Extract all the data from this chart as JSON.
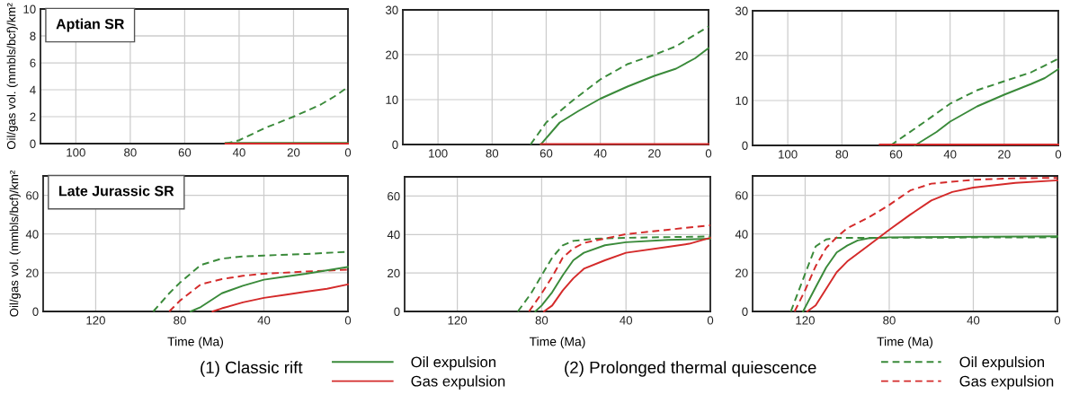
{
  "chart_data": [
    {
      "type": "line",
      "ylabel": "Oil/gas vol. (mmbls/bcf)/km²",
      "annotations": [
        "Aptian SR"
      ],
      "xlim": [
        113,
        0
      ],
      "xticks": [
        100,
        80,
        60,
        40,
        20,
        0
      ],
      "ylim": [
        0,
        10
      ],
      "yticks": [
        0,
        2,
        4,
        6,
        8,
        10
      ],
      "grid": true,
      "series": [
        {
          "color": "#3a8a3a",
          "line_style": "dashed",
          "x": [
            45,
            40,
            30,
            20,
            10,
            5,
            0
          ],
          "values": [
            0,
            0.25,
            1.2,
            2.0,
            2.9,
            3.5,
            4.2
          ]
        },
        {
          "color": "#3a8a3a",
          "line_style": "solid",
          "x": [
            45,
            0
          ],
          "values": [
            0.05,
            0.05
          ]
        },
        {
          "color": "#d42a2a",
          "line_style": "solid",
          "x": [
            45,
            0
          ],
          "values": [
            0,
            0
          ]
        }
      ]
    },
    {
      "type": "line",
      "xlim": [
        113,
        0
      ],
      "xticks": [
        100,
        80,
        60,
        40,
        20,
        0
      ],
      "ylim": [
        0,
        30
      ],
      "yticks": [
        0,
        10,
        20,
        30
      ],
      "grid": true,
      "series": [
        {
          "color": "#3a8a3a",
          "line_style": "dashed",
          "x": [
            65.8,
            60,
            50,
            40,
            30,
            20,
            12,
            0
          ],
          "values": [
            0,
            4.9,
            9.9,
            14.5,
            17.9,
            20,
            21.9,
            26.3
          ]
        },
        {
          "color": "#3a8a3a",
          "line_style": "solid",
          "x": [
            62,
            55,
            48,
            40,
            30,
            20,
            12,
            5,
            0
          ],
          "values": [
            0,
            4.9,
            7.5,
            10.2,
            12.9,
            15.3,
            16.9,
            19.2,
            21.5
          ]
        },
        {
          "color": "#d42a2a",
          "line_style": "solid",
          "x": [
            62,
            0
          ],
          "values": [
            0.1,
            0.1
          ]
        }
      ]
    },
    {
      "type": "line",
      "xlim": [
        113,
        0
      ],
      "xticks": [
        100,
        80,
        60,
        40,
        20,
        0
      ],
      "ylim": [
        0,
        30
      ],
      "yticks": [
        0,
        10,
        20,
        30
      ],
      "grid": true,
      "series": [
        {
          "color": "#3a8a3a",
          "line_style": "dashed",
          "x": [
            62,
            50,
            40,
            30,
            20,
            10,
            0
          ],
          "values": [
            0,
            5,
            9.3,
            12.3,
            14.3,
            16.3,
            19.3
          ]
        },
        {
          "color": "#3a8a3a",
          "line_style": "solid",
          "x": [
            53,
            45,
            40,
            30,
            20,
            10,
            5,
            0
          ],
          "values": [
            0,
            3,
            5.3,
            8.7,
            11.3,
            13.7,
            15,
            17
          ]
        },
        {
          "color": "#d42a2a",
          "line_style": "solid",
          "x": [
            66,
            0
          ],
          "values": [
            0.2,
            0.2
          ]
        }
      ]
    },
    {
      "type": "line",
      "ylabel": "Oil/gas vol. (mmbls/bcf)/km²",
      "xlabel": "Time (Ma)",
      "annotations": [
        "Late Jurassic SR"
      ],
      "xlim": [
        145,
        0
      ],
      "xticks": [
        120,
        80,
        40,
        0
      ],
      "ylim": [
        0,
        70
      ],
      "yticks": [
        0,
        20,
        40,
        60
      ],
      "grid": true,
      "series": [
        {
          "color": "#3a8a3a",
          "line_style": "dashed",
          "x": [
            92.6,
            85,
            80,
            70,
            60,
            50,
            40,
            20,
            0
          ],
          "values": [
            0,
            9.4,
            14.8,
            24,
            27.3,
            28.4,
            28.9,
            29.7,
            30.8
          ]
        },
        {
          "color": "#d42a2a",
          "line_style": "dashed",
          "x": [
            85,
            80,
            70,
            60,
            50,
            40,
            20,
            0
          ],
          "values": [
            0,
            5.5,
            14,
            16.7,
            18.4,
            19.5,
            20.6,
            21.6
          ]
        },
        {
          "color": "#3a8a3a",
          "line_style": "solid",
          "x": [
            74.8,
            70,
            60,
            50,
            40,
            30,
            20,
            0
          ],
          "values": [
            0,
            2.3,
            9.4,
            13.3,
            16.4,
            18,
            19.5,
            23
          ]
        },
        {
          "color": "#d42a2a",
          "line_style": "solid",
          "x": [
            64.4,
            60,
            50,
            40,
            30,
            20,
            10,
            0
          ],
          "values": [
            0,
            1.6,
            4.7,
            7,
            8.6,
            10.2,
            11.7,
            14
          ]
        }
      ]
    },
    {
      "type": "line",
      "xlabel": "Time (Ma)",
      "annotations": [
        "(1) Classic rift",
        "(2) Prolonged thermal quiescence"
      ],
      "legend": "bottom",
      "xlim": [
        145,
        0
      ],
      "xticks": [
        120,
        80,
        40,
        0
      ],
      "ylim": [
        0,
        70
      ],
      "yticks": [
        0,
        20,
        40,
        60
      ],
      "grid": true,
      "series": [
        {
          "name": "Oil expulsion",
          "color": "#3a8a3a",
          "line_style": "solid",
          "x": [
            83,
            80,
            75,
            70,
            65,
            60,
            50,
            40,
            20,
            0
          ],
          "values": [
            0,
            3.1,
            10,
            18.8,
            26.6,
            30.5,
            34.4,
            36,
            37.2,
            37.8
          ]
        },
        {
          "name": "Gas expulsion",
          "color": "#d42a2a",
          "line_style": "solid",
          "x": [
            78.9,
            75,
            70,
            65,
            60,
            50,
            40,
            20,
            10,
            0
          ],
          "values": [
            0,
            3.1,
            10.9,
            17.2,
            22.2,
            26.6,
            30.5,
            33.6,
            35.2,
            38.3
          ]
        },
        {
          "name": "Oil expulsion",
          "color": "#3a8a3a",
          "line_style": "dashed",
          "x": [
            91.3,
            85,
            80,
            75,
            70,
            65,
            55,
            40,
            0
          ],
          "values": [
            0,
            9.4,
            18.8,
            28,
            34.4,
            36.7,
            37.8,
            38.3,
            39
          ]
        },
        {
          "name": "Gas expulsion",
          "color": "#d42a2a",
          "line_style": "dashed",
          "x": [
            86,
            80,
            75,
            70,
            65,
            60,
            40,
            20,
            0
          ],
          "values": [
            0,
            9.4,
            18,
            28,
            32.8,
            35.6,
            40.2,
            42.5,
            44.8
          ]
        }
      ]
    },
    {
      "type": "line",
      "xlabel": "Time (Ma)",
      "xlim": [
        145,
        0
      ],
      "xticks": [
        120,
        80,
        40,
        0
      ],
      "ylim": [
        0,
        70
      ],
      "yticks": [
        0,
        20,
        40,
        60
      ],
      "grid": true,
      "series": [
        {
          "color": "#3a8a3a",
          "line_style": "dashed",
          "x": [
            126.8,
            120,
            115,
            110,
            105,
            0
          ],
          "values": [
            0,
            19.5,
            33.6,
            37.2,
            38,
            38.3
          ]
        },
        {
          "color": "#d42a2a",
          "line_style": "dashed",
          "x": [
            125,
            120,
            115,
            110,
            105,
            100,
            90,
            80,
            70,
            60,
            40,
            20,
            0
          ],
          "values": [
            0,
            11,
            23.4,
            32.8,
            38.3,
            43,
            48.4,
            55,
            62.5,
            66,
            68,
            68.8,
            69
          ]
        },
        {
          "color": "#3a8a3a",
          "line_style": "solid",
          "x": [
            121,
            115,
            110,
            105,
            100,
            95,
            90,
            80,
            0
          ],
          "values": [
            0,
            12.5,
            22.7,
            30.5,
            34,
            36.7,
            37.8,
            38.3,
            38.8
          ]
        },
        {
          "color": "#d42a2a",
          "line_style": "solid",
          "x": [
            119,
            115,
            110,
            105,
            100,
            90,
            80,
            70,
            60,
            50,
            40,
            20,
            0
          ],
          "values": [
            0,
            3.1,
            11.7,
            20.3,
            25.8,
            34,
            42.2,
            50,
            57.3,
            61.7,
            64,
            66.4,
            67.7
          ]
        }
      ]
    }
  ]
}
